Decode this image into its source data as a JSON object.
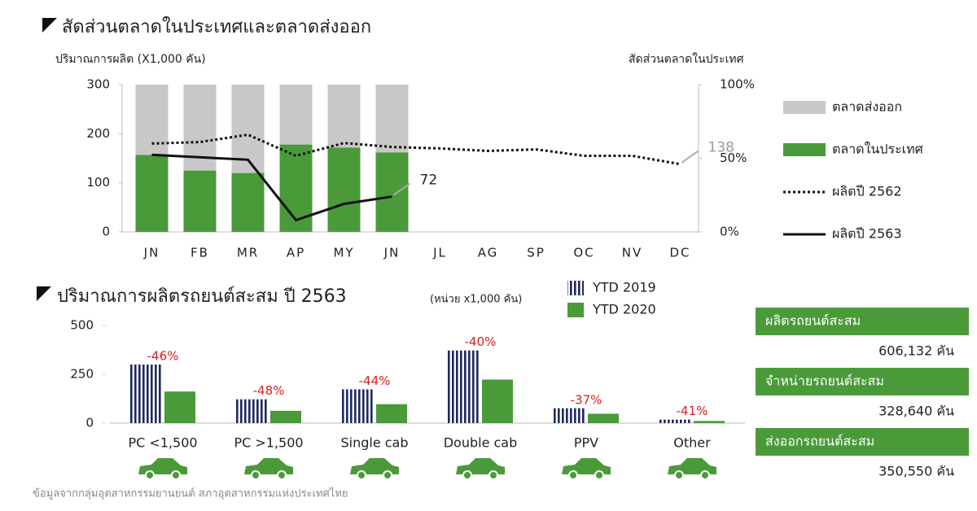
{
  "chart_data": [
    {
      "type": "combo",
      "title": "สัดส่วนตลาดในประเทศและตลาดส่งออก",
      "y_label": "ปริมาณการผลิต (X1,000 คัน)",
      "y2_label": "สัดส่วนตลาดในประเทศ",
      "categories": [
        "JN",
        "FB",
        "MR",
        "AP",
        "MY",
        "JN",
        "JL",
        "AG",
        "SP",
        "OC",
        "NV",
        "DC"
      ],
      "ylim": [
        0,
        300
      ],
      "yticks": [
        0,
        100,
        200,
        300
      ],
      "y2lim": [
        0,
        100
      ],
      "y2ticks": [
        {
          "value": 0,
          "label": "0%"
        },
        {
          "value": 50,
          "label": "50%"
        },
        {
          "value": 100,
          "label": "100%"
        }
      ],
      "grid": false,
      "legend": "right",
      "series": [
        {
          "name": "ตลาดส่งออก",
          "type": "bar",
          "stack": true,
          "color": "#c8c8c8",
          "values": [
            143,
            175,
            180,
            122,
            128,
            138,
            null,
            null,
            null,
            null,
            null,
            null
          ]
        },
        {
          "name": "ตลาดในประเทศ",
          "type": "bar",
          "stack": true,
          "color": "#4a9a3a",
          "values": [
            157,
            125,
            120,
            178,
            172,
            162,
            null,
            null,
            null,
            null,
            null,
            null
          ]
        },
        {
          "name": "ผลิตปี 2562",
          "type": "line",
          "dash": "dotted",
          "color": "#111111",
          "data_label": "last",
          "label_color": "#999999",
          "values": [
            180,
            183,
            198,
            155,
            181,
            173,
            170,
            165,
            168,
            155,
            155,
            138
          ]
        },
        {
          "name": "ผลิตปี 2563",
          "type": "line",
          "dash": "solid",
          "color": "#111111",
          "data_label": "last",
          "label_color": "#222222",
          "values": [
            157,
            152,
            147,
            24,
            57,
            72,
            null,
            null,
            null,
            null,
            null,
            null
          ]
        }
      ]
    },
    {
      "type": "bar",
      "title": "ปริมาณการผลิตรถยนต์สะสม ปี 2563",
      "subtitle": "(หน่วย x1,000 คัน)",
      "categories": [
        "PC <1,500",
        "PC >1,500",
        "Single cab",
        "Double cab",
        "PPV",
        "Other"
      ],
      "ylim": [
        0,
        500
      ],
      "yticks": [
        0,
        250,
        500
      ],
      "grid": false,
      "legend": "top",
      "series": [
        {
          "name": "YTD 2019",
          "color": "#1f2a5a",
          "pattern": "stripes",
          "values": [
            300,
            122,
            173,
            372,
            76,
            18
          ]
        },
        {
          "name": "YTD 2020",
          "color": "#4a9a3a",
          "values": [
            162,
            63,
            97,
            223,
            48,
            11
          ]
        }
      ],
      "change": {
        "color": "#d62020",
        "values": [
          -46,
          -48,
          -44,
          -40,
          -37,
          -41
        ],
        "value_labels": [
          "-46%",
          "-48%",
          "-44%",
          "-40%",
          "-37%",
          "-41%"
        ]
      }
    }
  ],
  "stats": [
    {
      "label": "ผลิตรถยนต์สะสม",
      "value": "606,132 คัน"
    },
    {
      "label": "จำหน่ายรถยนต์สะสม",
      "value": "328,640 คัน"
    },
    {
      "label": "ส่งออกรถยนต์สะสม",
      "value": "350,550 คัน"
    }
  ],
  "source": "ข้อมูลจากกลุ่มอุตสาหกรรมยานยนต์ สภาอุตสาหกรรมแห่งประเทศไทย"
}
